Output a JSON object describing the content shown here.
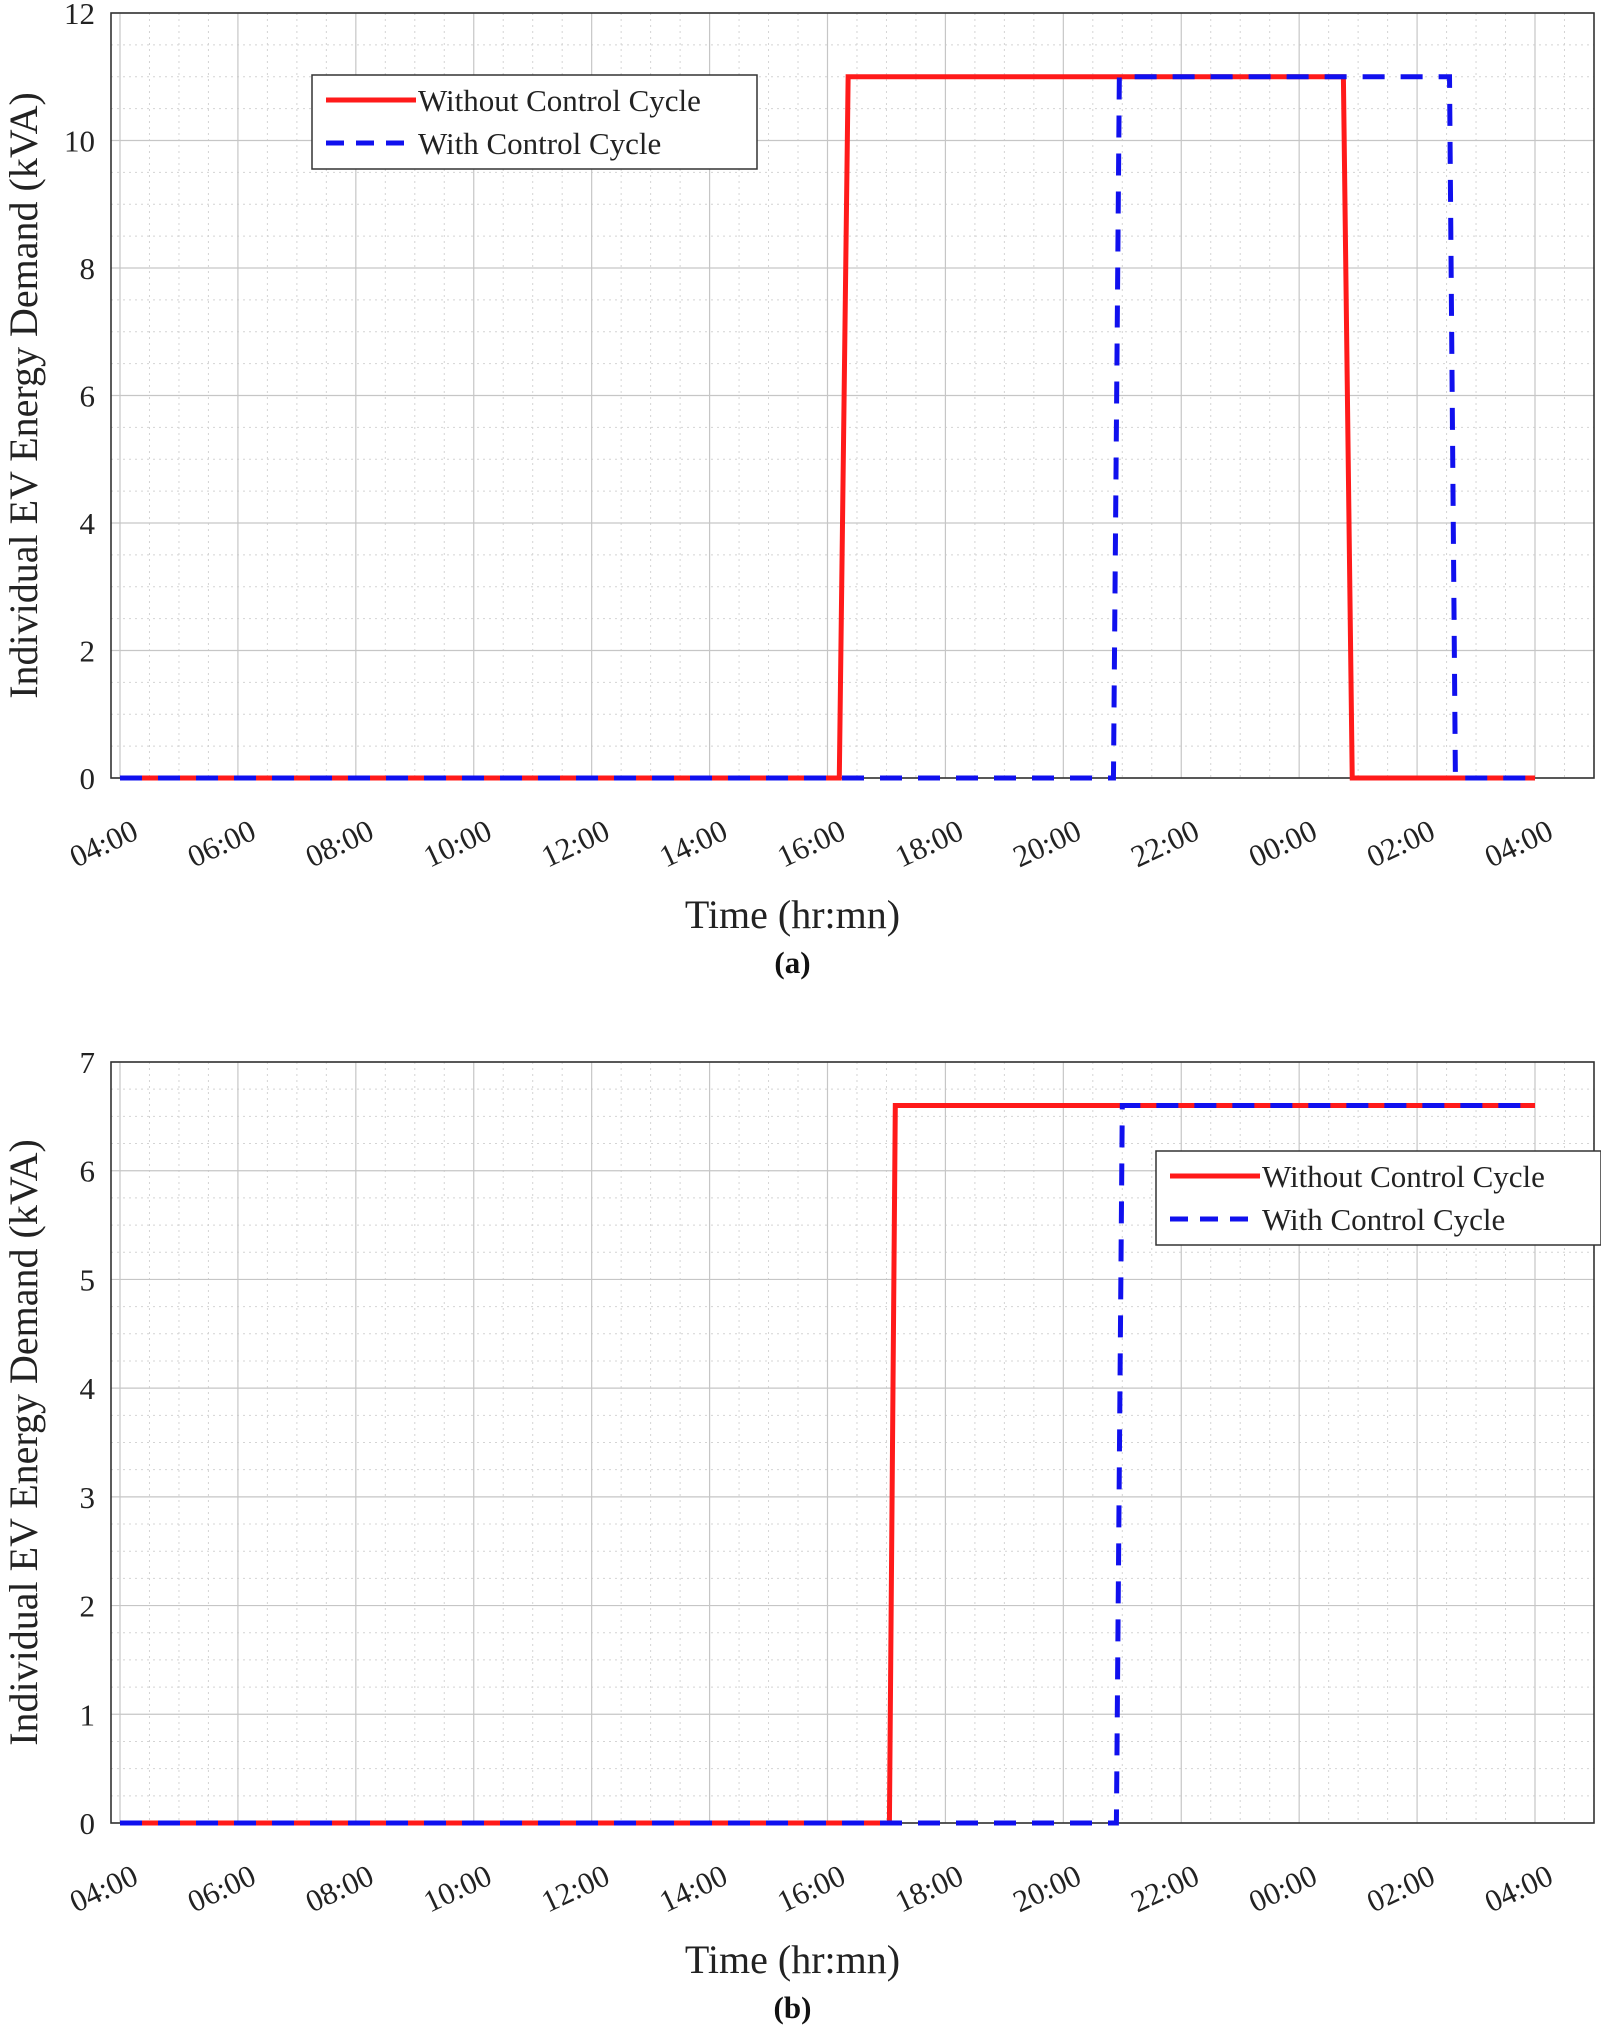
{
  "chart_data": [
    {
      "type": "line",
      "caption": "(a)",
      "xlabel": "Time (hr:mn)",
      "ylabel": "Individual EV Energy Demand (kVA)",
      "xlim": [
        0,
        24
      ],
      "ylim": [
        0,
        12
      ],
      "yticks": [
        0,
        2,
        4,
        6,
        8,
        10,
        12
      ],
      "yminor_step": 0.5,
      "xticks": [
        0,
        2,
        4,
        6,
        8,
        10,
        12,
        14,
        16,
        18,
        20,
        22,
        24
      ],
      "xtick_labels": [
        "04:00",
        "06:00",
        "08:00",
        "10:00",
        "12:00",
        "14:00",
        "16:00",
        "18:00",
        "20:00",
        "22:00",
        "00:00",
        "02:00",
        "04:00"
      ],
      "xminor_step": 0.5,
      "grid": true,
      "legend_position": "top-left",
      "series": [
        {
          "name": "Without Control Cycle",
          "color": "#ff1a1a",
          "style": "solid",
          "x": [
            0,
            12.2,
            12.35,
            20.75,
            20.9,
            24
          ],
          "y": [
            0,
            0,
            11,
            11,
            0,
            0
          ]
        },
        {
          "name": "With Control Cycle",
          "color": "#1010ee",
          "style": "dashed",
          "x": [
            0,
            16.85,
            16.95,
            22.55,
            22.65,
            24
          ],
          "y": [
            0,
            0,
            11,
            11,
            0,
            0
          ]
        }
      ]
    },
    {
      "type": "line",
      "caption": "(b)",
      "xlabel": "Time (hr:mn)",
      "ylabel": "Individual EV Energy Demand (kVA)",
      "xlim": [
        0,
        24
      ],
      "ylim": [
        0,
        7
      ],
      "yticks": [
        0,
        1,
        2,
        3,
        4,
        5,
        6,
        7
      ],
      "yminor_step": 0.25,
      "xticks": [
        0,
        2,
        4,
        6,
        8,
        10,
        12,
        14,
        16,
        18,
        20,
        22,
        24
      ],
      "xtick_labels": [
        "04:00",
        "06:00",
        "08:00",
        "10:00",
        "12:00",
        "14:00",
        "16:00",
        "18:00",
        "20:00",
        "22:00",
        "00:00",
        "02:00",
        "04:00"
      ],
      "xminor_step": 0.5,
      "grid": true,
      "legend_position": "top-right",
      "series": [
        {
          "name": "Without Control Cycle",
          "color": "#ff1a1a",
          "style": "solid",
          "x": [
            0,
            13.05,
            13.15,
            24
          ],
          "y": [
            0,
            0,
            6.6,
            6.6
          ]
        },
        {
          "name": "With Control Cycle",
          "color": "#1010ee",
          "style": "dashed",
          "x": [
            0,
            16.9,
            17.0,
            24
          ],
          "y": [
            0,
            0,
            6.6,
            6.6
          ]
        }
      ]
    }
  ]
}
